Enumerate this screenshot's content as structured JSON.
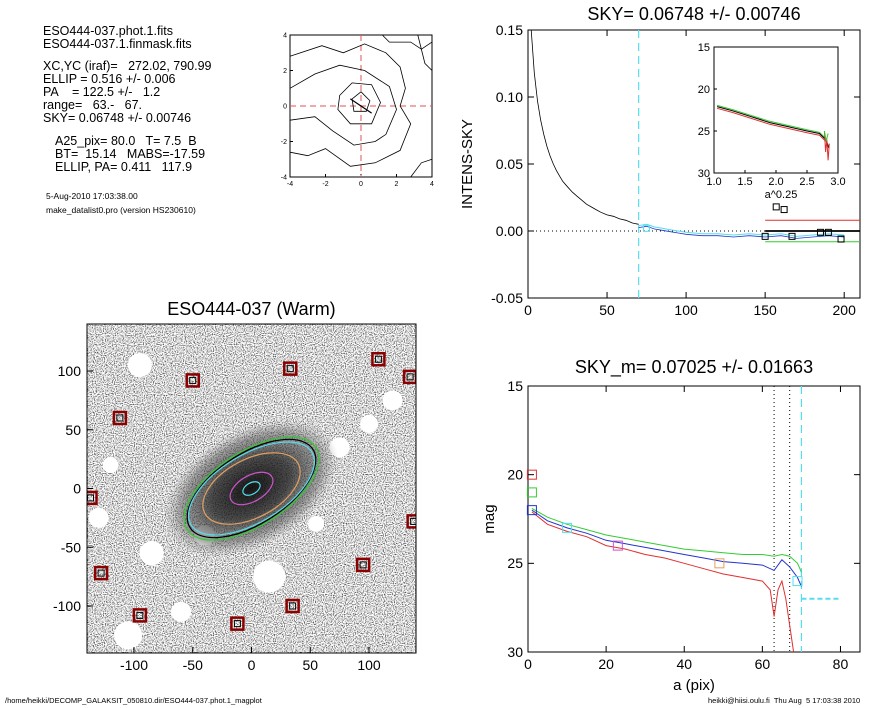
{
  "info": {
    "file1": "ESO444-037.phot.1.fits",
    "file2": "ESO444-037.1.finmask.fits",
    "xcyc": "XC,YC (iraf)=   272.02, 790.99",
    "ellip": "ELLIP = 0.516 +/- 0.006",
    "pa": "PA    = 122.5 +/-   1.2",
    "range": "range=   63.-   67.",
    "sky": "SKY= 0.06748 +/- 0.00746",
    "a25": "A25_pix= 80.0   T= 7.5  B",
    "bt": "BT=  15.14   MABS=-17.59",
    "ellip_pa": "ELLIP, PA= 0.411   117.9",
    "date": "5-Aug-2010 17:03:38.00",
    "program": "make_datalist0.pro (version HS230610)"
  },
  "footer": {
    "path": "/home/heikki/DECOMP_GALAKSIT_050810.dir/ESO444-037.phot.1_magplot",
    "user": "heikki@hiisi.oulu.fi  Thu Aug  5 17:03:38 2010"
  },
  "colors": {
    "sky_line": "#55ddee",
    "green": "#33cc33",
    "red": "#e03030",
    "blue": "#2233cc",
    "magenta": "#cc55cc",
    "orange": "#e0a060",
    "mask_box": "#8b0000"
  },
  "chart_data": [
    {
      "type": "contour",
      "title": "",
      "xlim": [
        -4,
        4
      ],
      "ylim": [
        -4,
        4
      ],
      "xticks": [
        "-4",
        "-2",
        "0",
        "2",
        "4"
      ],
      "yticks": [
        "-4",
        "-2",
        "0",
        "2",
        "4"
      ],
      "center": [
        0,
        0
      ]
    },
    {
      "type": "line",
      "title": "SKY= 0.06748 +/- 0.00746",
      "xlabel": "",
      "ylabel": "INTENS-SKY",
      "xlim": [
        0,
        210
      ],
      "ylim": [
        -0.05,
        0.15
      ],
      "xticks": [
        "0",
        "50",
        "100",
        "150",
        "200"
      ],
      "yticks": [
        "-0.05",
        "0.00",
        "0.05",
        "0.10",
        "0.15"
      ],
      "sky_radius": 70,
      "profile": {
        "x": [
          2,
          4,
          6,
          8,
          10,
          12,
          14,
          16,
          18,
          20,
          22,
          25,
          28,
          31,
          34,
          37,
          40,
          43,
          46,
          50,
          54,
          58,
          62,
          66,
          70
        ],
        "y": [
          0.15,
          0.118,
          0.097,
          0.083,
          0.072,
          0.063,
          0.056,
          0.05,
          0.045,
          0.041,
          0.037,
          0.033,
          0.029,
          0.026,
          0.023,
          0.02,
          0.018,
          0.016,
          0.014,
          0.012,
          0.011,
          0.009,
          0.008,
          0.006,
          0.005
        ]
      },
      "outer_profile": {
        "x": [
          70,
          75,
          80,
          85,
          90,
          95,
          100,
          110,
          120,
          130,
          140,
          150,
          160,
          170,
          180,
          190,
          200
        ],
        "y": [
          0.004,
          0.005,
          0.003,
          0.002,
          0.001,
          0.0,
          -0.001,
          -0.002,
          -0.002,
          -0.003,
          -0.002,
          -0.003,
          -0.002,
          -0.004,
          -0.003,
          -0.002,
          -0.003
        ]
      },
      "square_markers": {
        "x": [
          150,
          157,
          162,
          167,
          185,
          190,
          198
        ],
        "y": [
          -0.004,
          0.018,
          0.016,
          -0.004,
          -0.001,
          -0.001,
          -0.006
        ]
      },
      "levels": {
        "red": 0.008,
        "black": 0.0,
        "green": -0.008
      }
    },
    {
      "type": "line",
      "title": "",
      "xlabel": "a^0.25",
      "ylabel": "",
      "xlim": [
        1.0,
        3.0
      ],
      "ylim": [
        30,
        15
      ],
      "xticks": [
        "1.0",
        "1.5",
        "2.0",
        "2.5",
        "3.0"
      ],
      "yticks": [
        "15",
        "20",
        "25",
        "30"
      ],
      "series": [
        {
          "name": "",
          "x": [
            1.05,
            1.3,
            1.6,
            1.9,
            2.2,
            2.5,
            2.7,
            2.8,
            2.85
          ],
          "y": [
            22.1,
            22.6,
            23.3,
            24.0,
            24.5,
            25.0,
            25.3,
            26.0,
            27.0
          ]
        }
      ]
    },
    {
      "type": "line",
      "title": "SKY_m=  0.07025 +/- 0.01663",
      "xlabel": "a (pix)",
      "ylabel": "mag",
      "xlim": [
        0,
        85
      ],
      "ylim": [
        30,
        15
      ],
      "xticks": [
        "0",
        "20",
        "40",
        "60",
        "80"
      ],
      "yticks": [
        "15",
        "20",
        "25",
        "30"
      ],
      "vlines_dotted": [
        63,
        67
      ],
      "vline_sky": 70,
      "series": [
        {
          "name": "",
          "color": "blue",
          "x": [
            1,
            5,
            10,
            15,
            20,
            25,
            30,
            35,
            40,
            45,
            50,
            55,
            60,
            63,
            65,
            67,
            69,
            70
          ],
          "y": [
            22.0,
            22.6,
            23.0,
            23.3,
            23.7,
            23.9,
            24.1,
            24.3,
            24.5,
            24.7,
            24.9,
            25.0,
            25.1,
            25.4,
            24.8,
            25.2,
            25.8,
            26.3
          ]
        },
        {
          "name": "",
          "color": "green",
          "x": [
            1,
            5,
            10,
            15,
            20,
            25,
            30,
            35,
            40,
            45,
            50,
            55,
            60,
            63,
            65,
            67,
            69,
            70
          ],
          "y": [
            21.9,
            22.4,
            22.8,
            23.1,
            23.4,
            23.6,
            23.8,
            24.0,
            24.2,
            24.3,
            24.4,
            24.5,
            24.5,
            24.6,
            24.5,
            24.6,
            25.0,
            25.5
          ]
        },
        {
          "name": "",
          "color": "red",
          "x": [
            1,
            5,
            10,
            15,
            20,
            25,
            30,
            35,
            40,
            45,
            50,
            55,
            60,
            62,
            63,
            64,
            65,
            66,
            67,
            68
          ],
          "y": [
            22.1,
            22.8,
            23.2,
            23.5,
            24.0,
            24.2,
            24.5,
            24.7,
            25.0,
            25.3,
            25.6,
            25.8,
            26.0,
            26.5,
            28.0,
            26.5,
            26.0,
            27.0,
            28.5,
            30
          ]
        }
      ],
      "square_markers": [
        {
          "x": 1,
          "y": 20.0,
          "color": "red"
        },
        {
          "x": 1,
          "y": 21.0,
          "color": "green"
        },
        {
          "x": 1,
          "y": 22.0,
          "color": "blue"
        },
        {
          "x": 10,
          "y": 23.0,
          "color": "cyan"
        },
        {
          "x": 23,
          "y": 24.0,
          "color": "magenta"
        },
        {
          "x": 49,
          "y": 25.0,
          "color": "orange"
        },
        {
          "x": 69,
          "y": 26.0,
          "color": "cyan"
        }
      ],
      "sky_segment": {
        "x": [
          70,
          80
        ],
        "y": [
          27.0,
          27.0
        ]
      }
    },
    {
      "type": "image",
      "title": "ESO444-037 (Warm)",
      "xlim": [
        -140,
        140
      ],
      "ylim": [
        -140,
        140
      ],
      "xticks": [
        "-100",
        "-50",
        "0",
        "50",
        "100"
      ],
      "yticks": [
        "-100",
        "-50",
        "0",
        "50",
        "100"
      ],
      "mask_boxes": [
        {
          "x": -50,
          "y": 92
        },
        {
          "x": 33,
          "y": 102
        },
        {
          "x": 108,
          "y": 110
        },
        {
          "x": 135,
          "y": 95
        },
        {
          "x": -112,
          "y": 60
        },
        {
          "x": -137,
          "y": -8
        },
        {
          "x": 138,
          "y": -28
        },
        {
          "x": -128,
          "y": -72
        },
        {
          "x": 95,
          "y": -65
        },
        {
          "x": -95,
          "y": -108
        },
        {
          "x": -12,
          "y": -115
        },
        {
          "x": 35,
          "y": -100
        }
      ],
      "ellipses": [
        {
          "a": 65,
          "ellip": 0.516,
          "pa": 122.5,
          "color": "green"
        },
        {
          "a": 62,
          "ellip": 0.516,
          "pa": 122.5,
          "color": "black"
        },
        {
          "a": 60,
          "ellip": 0.52,
          "pa": 121,
          "color": "sky"
        },
        {
          "a": 45,
          "ellip": 0.45,
          "pa": 118,
          "color": "orange"
        },
        {
          "a": 20,
          "ellip": 0.45,
          "pa": 120,
          "color": "magenta"
        },
        {
          "a": 8,
          "ellip": 0.4,
          "pa": 120,
          "color": "sky"
        }
      ]
    }
  ]
}
